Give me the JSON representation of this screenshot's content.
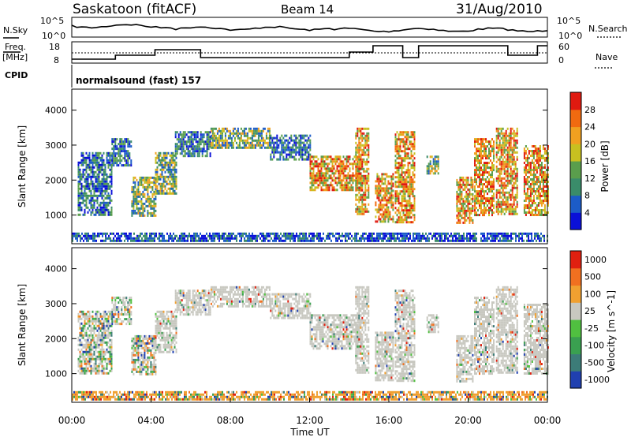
{
  "header": {
    "title": "Saskatoon (fitACF)",
    "beam": "Beam 14",
    "date": "31/Aug/2010"
  },
  "noise_panel": {
    "left_label": "N.Sky",
    "left_ticks": [
      "10^5",
      "10^0"
    ],
    "right_label": "N.Search",
    "right_ticks": [
      "10^5",
      "10^0"
    ]
  },
  "freq_panel": {
    "left_label_1": "Freq.",
    "left_label_2": "[MHz]",
    "left_ticks": [
      "18",
      "8"
    ],
    "right_label": "Nave",
    "right_ticks": [
      "60",
      "0"
    ]
  },
  "cpid": {
    "label": "CPID",
    "value": "normalsound (fast) 157"
  },
  "chart_data": [
    {
      "type": "heatmap",
      "name": "power",
      "ylabel": "Slant Range [km]",
      "xlabel": "Time UT",
      "xlim": [
        "00:00",
        "24:00"
      ],
      "ylim": [
        180,
        4600
      ],
      "y_ticks": [
        "1000",
        "2000",
        "3000",
        "4000"
      ],
      "x_ticks": [
        "00:00",
        "04:00",
        "08:00",
        "12:00",
        "16:00",
        "20:00",
        "00:00"
      ],
      "colorbar": {
        "label": "Power [dB]",
        "ticks": [
          "4",
          "8",
          "12",
          "16",
          "20",
          "24",
          "28"
        ],
        "colors": [
          "#0a10d8",
          "#1c5cc8",
          "#3a8c6a",
          "#5a9e4c",
          "#c8c020",
          "#f0a020",
          "#f06a10",
          "#e01a10"
        ]
      },
      "echo_regions": [
        {
          "t": [
            0.3,
            2.0
          ],
          "r": [
            1000,
            2800
          ],
          "level": "low"
        },
        {
          "t": [
            2.0,
            3.0
          ],
          "r": [
            2400,
            3200
          ],
          "level": "low"
        },
        {
          "t": [
            3.0,
            4.2
          ],
          "r": [
            1000,
            2100
          ],
          "level": "mid"
        },
        {
          "t": [
            4.2,
            5.3
          ],
          "r": [
            1600,
            2800
          ],
          "level": "mid"
        },
        {
          "t": [
            5.2,
            7.0
          ],
          "r": [
            2700,
            3400
          ],
          "level": "low"
        },
        {
          "t": [
            7.0,
            10.0
          ],
          "r": [
            2900,
            3500
          ],
          "level": "mid"
        },
        {
          "t": [
            10.0,
            12.0
          ],
          "r": [
            2600,
            3300
          ],
          "level": "low"
        },
        {
          "t": [
            12.0,
            14.6
          ],
          "r": [
            1700,
            2700
          ],
          "level": "high"
        },
        {
          "t": [
            14.3,
            15.0
          ],
          "r": [
            1000,
            3500
          ],
          "level": "high"
        },
        {
          "t": [
            15.3,
            16.2
          ],
          "r": [
            800,
            2200
          ],
          "level": "high"
        },
        {
          "t": [
            16.3,
            17.3
          ],
          "r": [
            800,
            3400
          ],
          "level": "high"
        },
        {
          "t": [
            17.9,
            18.5
          ],
          "r": [
            2200,
            2700
          ],
          "level": "mid"
        },
        {
          "t": [
            19.4,
            20.2
          ],
          "r": [
            800,
            2100
          ],
          "level": "high"
        },
        {
          "t": [
            20.3,
            21.3
          ],
          "r": [
            1000,
            3200
          ],
          "level": "high"
        },
        {
          "t": [
            21.4,
            22.5
          ],
          "r": [
            1000,
            3500
          ],
          "level": "high"
        },
        {
          "t": [
            22.8,
            24.0
          ],
          "r": [
            1000,
            3000
          ],
          "level": "high"
        },
        {
          "t": [
            0.0,
            24.0
          ],
          "r": [
            250,
            500
          ],
          "level": "ground"
        }
      ]
    },
    {
      "type": "heatmap",
      "name": "velocity",
      "ylabel": "Slant Range [km]",
      "xlabel": "Time UT",
      "xlim": [
        "00:00",
        "24:00"
      ],
      "ylim": [
        180,
        4600
      ],
      "y_ticks": [
        "1000",
        "2000",
        "3000",
        "4000"
      ],
      "x_ticks": [
        "00:00",
        "04:00",
        "08:00",
        "12:00",
        "16:00",
        "20:00",
        "00:00"
      ],
      "colorbar": {
        "label": "Velocity [m s^-1]",
        "ticks": [
          "1000",
          "500",
          "100",
          "25",
          "-25",
          "-100",
          "-500",
          "-1000"
        ],
        "colors": [
          "#2040b0",
          "#3c7c78",
          "#3aa050",
          "#50c040",
          "#c8c8c0",
          "#f0a030",
          "#f07020",
          "#e02010"
        ]
      },
      "echo_regions": [
        {
          "t": [
            0.3,
            2.0
          ],
          "r": [
            1000,
            2800
          ],
          "level": "mixed"
        },
        {
          "t": [
            2.0,
            3.0
          ],
          "r": [
            2400,
            3200
          ],
          "level": "mixed"
        },
        {
          "t": [
            3.0,
            4.2
          ],
          "r": [
            1000,
            2100
          ],
          "level": "mixed"
        },
        {
          "t": [
            4.2,
            5.3
          ],
          "r": [
            1600,
            2800
          ],
          "level": "grey"
        },
        {
          "t": [
            5.2,
            7.0
          ],
          "r": [
            2700,
            3400
          ],
          "level": "grey"
        },
        {
          "t": [
            7.0,
            10.0
          ],
          "r": [
            2900,
            3500
          ],
          "level": "grey"
        },
        {
          "t": [
            10.0,
            12.0
          ],
          "r": [
            2600,
            3300
          ],
          "level": "grey"
        },
        {
          "t": [
            12.0,
            14.6
          ],
          "r": [
            1700,
            2700
          ],
          "level": "grey"
        },
        {
          "t": [
            14.3,
            15.0
          ],
          "r": [
            1000,
            3500
          ],
          "level": "grey"
        },
        {
          "t": [
            15.3,
            16.2
          ],
          "r": [
            800,
            2200
          ],
          "level": "grey"
        },
        {
          "t": [
            16.3,
            17.3
          ],
          "r": [
            800,
            3400
          ],
          "level": "grey"
        },
        {
          "t": [
            17.9,
            18.5
          ],
          "r": [
            2200,
            2700
          ],
          "level": "grey"
        },
        {
          "t": [
            19.4,
            20.2
          ],
          "r": [
            800,
            2100
          ],
          "level": "grey"
        },
        {
          "t": [
            20.3,
            21.3
          ],
          "r": [
            1000,
            3200
          ],
          "level": "grey"
        },
        {
          "t": [
            21.4,
            22.5
          ],
          "r": [
            1000,
            3500
          ],
          "level": "grey"
        },
        {
          "t": [
            22.8,
            24.0
          ],
          "r": [
            1000,
            3000
          ],
          "level": "grey"
        },
        {
          "t": [
            0.0,
            24.0
          ],
          "r": [
            250,
            500
          ],
          "level": "ground"
        }
      ]
    }
  ]
}
